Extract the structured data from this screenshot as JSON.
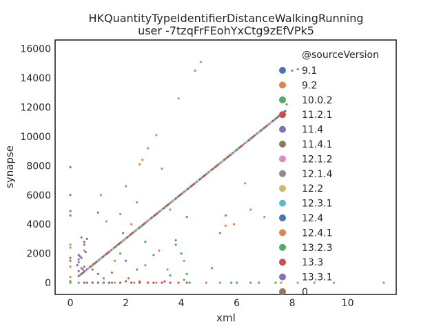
{
  "chart_data": {
    "type": "scatter",
    "title": "HKQuantityTypeIdentifierDistanceWalkingRunning",
    "subtitle": "user -7tzqFrFEohYxCtg9zEfVPk5",
    "xlabel": "xml",
    "ylabel": "synapse",
    "xlim": [
      -0.55,
      11.75
    ],
    "ylim": [
      -800,
      16600
    ],
    "x_ticks": [
      0,
      2,
      4,
      6,
      8,
      10
    ],
    "y_ticks": [
      0,
      2000,
      4000,
      6000,
      8000,
      10000,
      12000,
      14000,
      16000
    ],
    "grid": false,
    "legend": {
      "title": "@sourceVersion",
      "placement": "top-right",
      "entries": [
        {
          "label": "9.1",
          "color": "#4c72b0"
        },
        {
          "label": "9.2",
          "color": "#dd8452"
        },
        {
          "label": "10.0.2",
          "color": "#55a868"
        },
        {
          "label": "11.2.1",
          "color": "#c44e52"
        },
        {
          "label": "11.4",
          "color": "#8172b3"
        },
        {
          "label": "11.4.1",
          "color": "#937860"
        },
        {
          "label": "12.1.2",
          "color": "#da8bc3"
        },
        {
          "label": "12.1.4",
          "color": "#8c8c8c"
        },
        {
          "label": "12.2",
          "color": "#ccb974"
        },
        {
          "label": "12.3.1",
          "color": "#64b5cd"
        },
        {
          "label": "12.4",
          "color": "#4c72b0"
        },
        {
          "label": "12.4.1",
          "color": "#dd8452"
        },
        {
          "label": "13.2.3",
          "color": "#55a868"
        },
        {
          "label": "13.3",
          "color": "#c44e52"
        },
        {
          "label": "13.3.1",
          "color": "#8172b3"
        },
        {
          "label": "0",
          "color": "#937860"
        }
      ]
    },
    "series": [
      {
        "label_index": 1,
        "points": [
          [
            4.5,
            14500
          ],
          [
            4.7,
            15100
          ],
          [
            3.9,
            12600
          ],
          [
            3.1,
            10100
          ],
          [
            2.8,
            9200
          ],
          [
            2.6,
            8400
          ],
          [
            2.5,
            8100
          ],
          [
            2.0,
            6600
          ],
          [
            3.3,
            7800
          ],
          [
            1.8,
            4700
          ],
          [
            1.3,
            4200
          ],
          [
            6.3,
            6800
          ],
          [
            6.5,
            5000
          ],
          [
            7.0,
            4500
          ],
          [
            5.6,
            3900
          ],
          [
            5.9,
            4000
          ],
          [
            2.4,
            5500
          ],
          [
            3.6,
            5000
          ],
          [
            2.2,
            4000
          ],
          [
            1.1,
            6000
          ],
          [
            0.5,
            2200
          ],
          [
            1.6,
            1500
          ],
          [
            2.7,
            1200
          ],
          [
            3.2,
            2200
          ],
          [
            3.5,
            900
          ],
          [
            4.1,
            1500
          ],
          [
            0,
            2600
          ],
          [
            0,
            2400
          ],
          [
            0,
            1100
          ],
          [
            0,
            400
          ],
          [
            7.6,
            0
          ],
          [
            8.2,
            0
          ],
          [
            8.8,
            0
          ],
          [
            9.5,
            0
          ],
          [
            11.3,
            0
          ],
          [
            5.4,
            0
          ],
          [
            4.9,
            0
          ],
          [
            0.8,
            0
          ],
          [
            1.6,
            0
          ],
          [
            2.3,
            0
          ],
          [
            3.1,
            0
          ]
        ]
      },
      {
        "label_index": 2,
        "points": [
          [
            5.6,
            4600
          ],
          [
            5.4,
            3400
          ],
          [
            4.2,
            4500
          ],
          [
            3.8,
            2600
          ],
          [
            3.0,
            1900
          ],
          [
            2.7,
            2800
          ],
          [
            2.4,
            900
          ],
          [
            1.8,
            2000
          ],
          [
            4.0,
            2000
          ],
          [
            5.1,
            1000
          ],
          [
            0.3,
            0
          ],
          [
            1.2,
            0
          ],
          [
            1.5,
            0
          ],
          [
            0,
            0
          ],
          [
            0,
            100
          ],
          [
            4.1,
            200
          ],
          [
            4.3,
            0
          ],
          [
            6.0,
            0
          ],
          [
            5.8,
            0
          ],
          [
            6.5,
            0
          ],
          [
            6.8,
            0
          ],
          [
            7.4,
            0
          ],
          [
            7.8,
            12200
          ],
          [
            8.0,
            14500
          ],
          [
            8.2,
            14600
          ],
          [
            1.2,
            300
          ],
          [
            3.6,
            500
          ],
          [
            4.2,
            600
          ]
        ]
      },
      {
        "label_index": 3,
        "points": [
          [
            1.4,
            0
          ],
          [
            1.8,
            0
          ],
          [
            2.2,
            0
          ],
          [
            2.5,
            0
          ],
          [
            2.8,
            0
          ],
          [
            3.0,
            0
          ],
          [
            3.3,
            0
          ],
          [
            3.6,
            0
          ],
          [
            3.9,
            0
          ],
          [
            4.2,
            0
          ],
          [
            2.0,
            100
          ],
          [
            2.5,
            80
          ],
          [
            3.4,
            90
          ],
          [
            0.5,
            0
          ],
          [
            0.8,
            0
          ],
          [
            1.0,
            0
          ]
        ]
      },
      {
        "label_index": 4,
        "points": [
          [
            0.4,
            3100
          ],
          [
            0.5,
            2800
          ],
          [
            0.3,
            1900
          ],
          [
            0.35,
            1800
          ],
          [
            0.3,
            1600
          ],
          [
            0.4,
            1700
          ],
          [
            0.3,
            1400
          ],
          [
            0.25,
            1200
          ],
          [
            0.45,
            900
          ],
          [
            0.5,
            1100
          ],
          [
            1.9,
            3400
          ],
          [
            1.0,
            4800
          ],
          [
            3.8,
            2900
          ],
          [
            2.0,
            1500
          ],
          [
            0.6,
            0
          ],
          [
            1.0,
            0
          ],
          [
            1.2,
            0
          ],
          [
            0.55,
            2100
          ],
          [
            0.4,
            1000
          ],
          [
            0.3,
            800
          ]
        ]
      },
      {
        "label_index": 5,
        "points": [
          [
            0,
            7900
          ],
          [
            0,
            6000
          ],
          [
            0,
            4900
          ],
          [
            0,
            4600
          ],
          [
            0,
            1700
          ],
          [
            0,
            1500
          ],
          [
            0.5,
            2600
          ],
          [
            0.6,
            3000
          ],
          [
            0.8,
            900
          ],
          [
            1.0,
            600
          ],
          [
            1.5,
            700
          ],
          [
            2.1,
            300
          ]
        ]
      }
    ],
    "diagonal_trend": {
      "x_range": [
        0.3,
        7.75
      ],
      "slope": 1515,
      "colors": [
        "#4c72b0",
        "#dd8452",
        "#55a868",
        "#c44e52",
        "#8172b3",
        "#937860",
        "#da8bc3",
        "#8c8c8c",
        "#ccb974",
        "#64b5cd"
      ]
    }
  }
}
